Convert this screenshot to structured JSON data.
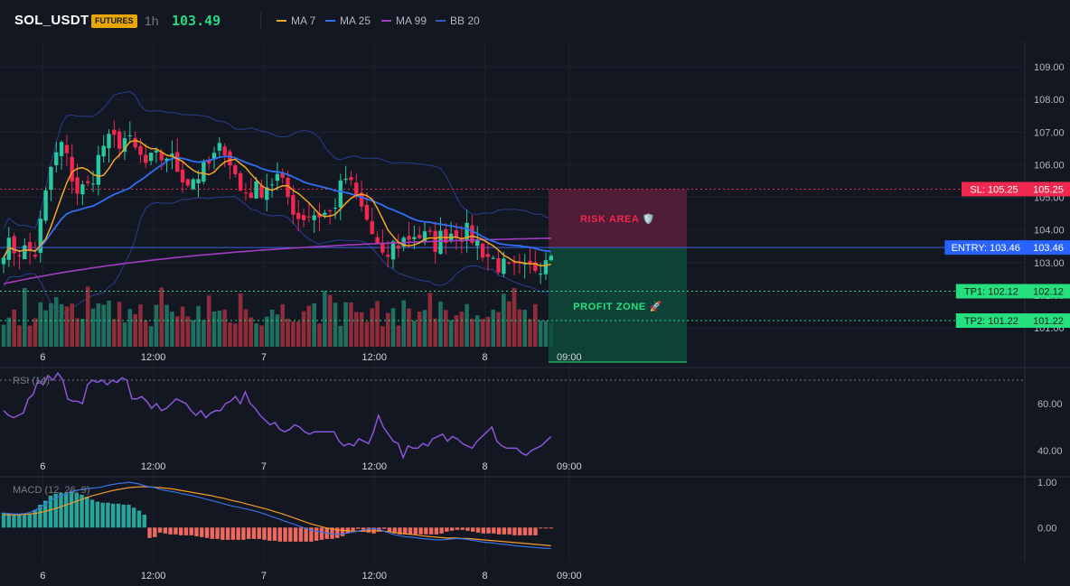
{
  "header": {
    "symbol": "SOL_USDT",
    "badge": "FUTURES",
    "timeframe": "1h",
    "last_price": "103.49",
    "indicators": [
      {
        "label": "MA 7",
        "color": "#f5a623"
      },
      {
        "label": "MA 25",
        "color": "#2f6ff2"
      },
      {
        "label": "MA 99",
        "color": "#a23cc0"
      },
      {
        "label": "BB 20",
        "color": "#2a3d8f"
      }
    ]
  },
  "colors": {
    "up": "#26c9a0",
    "down": "#f0284f",
    "vol_up": "#1e6f5f",
    "vol_down": "#8e2c3a",
    "sl": "#f0284f",
    "entry": "#2962ff",
    "tp": "#26e07f",
    "rsi": "#8a55d6",
    "macd_line": "#3a6fe0",
    "signal_line": "#f59a2a",
    "hist_pos": "#26a69a",
    "hist_neg": "#ef6a5e"
  },
  "price_axis": {
    "ticks": [
      "109.00",
      "108.00",
      "107.00",
      "106.00",
      "105.00",
      "104.00",
      "103.00",
      "102.00",
      "101.00"
    ],
    "min": 100.6,
    "max": 109.5
  },
  "time_axis": [
    {
      "label": "6",
      "idx": 4
    },
    {
      "label": "12:00",
      "idx": 25
    },
    {
      "label": "7",
      "idx": 46
    },
    {
      "label": "12:00",
      "idx": 67
    },
    {
      "label": "8",
      "idx": 88
    },
    {
      "label": "09:00",
      "idx": 104
    }
  ],
  "trade": {
    "sl_label": "SL: 105.25",
    "sl_value": "105.25",
    "entry_label": "ENTRY: 103.46",
    "entry_value": "103.46",
    "tp1_label": "TP1: 102.12",
    "tp1_value": "102.12",
    "tp2_label": "TP2: 101.22",
    "tp2_value": "101.22",
    "sl": 105.25,
    "entry": 103.46,
    "tp1": 102.12,
    "tp2": 101.22,
    "risk_label": "RISK AREA 🛡️",
    "profit_label": "PROFIT ZONE 🚀"
  },
  "rsi": {
    "title": "RSI (14)",
    "ticks": [
      "60.00",
      "40.00"
    ],
    "min": 30,
    "max": 75,
    "values": [
      57,
      55,
      54,
      55,
      56,
      62,
      64,
      70,
      68,
      72,
      70,
      73,
      70,
      62,
      61,
      61,
      60,
      68,
      70,
      69,
      70,
      68,
      70,
      69,
      71,
      70,
      62,
      62,
      63,
      61,
      58,
      60,
      57,
      58,
      60,
      62,
      61,
      60,
      57,
      55,
      57,
      54,
      56,
      57,
      57,
      60,
      61,
      63,
      60,
      65,
      60,
      58,
      55,
      53,
      51,
      52,
      49,
      48,
      49,
      51,
      50,
      48,
      47,
      48,
      48,
      48,
      48,
      48,
      44,
      42,
      43,
      42,
      45,
      44,
      43,
      48,
      55,
      50,
      47,
      44,
      43,
      37,
      42,
      41,
      41,
      43,
      42,
      45,
      46,
      47,
      44,
      46,
      45,
      43,
      42,
      41,
      44,
      46,
      48,
      50,
      44,
      42,
      41,
      41,
      41,
      39,
      38,
      40,
      41,
      42,
      44,
      46
    ],
    "overbought": 70
  },
  "macd": {
    "title": "MACD (12, 26, 9)",
    "ticks": [
      "1.00",
      "0.00"
    ],
    "min": -0.75,
    "max": 1.1,
    "macd": [
      0.32,
      0.31,
      0.3,
      0.3,
      0.31,
      0.33,
      0.38,
      0.45,
      0.52,
      0.6,
      0.65,
      0.7,
      0.74,
      0.8,
      0.82,
      0.84,
      0.86,
      0.87,
      0.88,
      0.9,
      0.93,
      0.95,
      0.97,
      0.98,
      1.0,
      0.98,
      0.96,
      0.92,
      0.9,
      0.88,
      0.84,
      0.82,
      0.8,
      0.78,
      0.75,
      0.73,
      0.71,
      0.68,
      0.65,
      0.62,
      0.59,
      0.56,
      0.53,
      0.5,
      0.47,
      0.45,
      0.42,
      0.4,
      0.37,
      0.34,
      0.3,
      0.26,
      0.22,
      0.18,
      0.14,
      0.1,
      0.06,
      0.02,
      -0.02,
      -0.06,
      -0.08,
      -0.1,
      -0.12,
      -0.14,
      -0.15,
      -0.14,
      -0.12,
      -0.1,
      -0.08,
      -0.05,
      -0.03,
      -0.02,
      -0.04,
      -0.08,
      -0.12,
      -0.16,
      -0.18,
      -0.2,
      -0.21,
      -0.22,
      -0.24,
      -0.25,
      -0.26,
      -0.27,
      -0.27,
      -0.26,
      -0.25,
      -0.24,
      -0.25,
      -0.26,
      -0.28,
      -0.3,
      -0.32,
      -0.33,
      -0.34,
      -0.36,
      -0.37,
      -0.38,
      -0.4,
      -0.41,
      -0.42,
      -0.43,
      -0.44,
      -0.45,
      -0.46,
      -0.46
    ],
    "signal": [
      0.28,
      0.28,
      0.28,
      0.28,
      0.29,
      0.3,
      0.31,
      0.33,
      0.36,
      0.39,
      0.42,
      0.46,
      0.5,
      0.54,
      0.58,
      0.62,
      0.66,
      0.7,
      0.73,
      0.76,
      0.79,
      0.82,
      0.84,
      0.86,
      0.88,
      0.89,
      0.9,
      0.9,
      0.9,
      0.89,
      0.88,
      0.87,
      0.86,
      0.84,
      0.82,
      0.8,
      0.78,
      0.76,
      0.74,
      0.72,
      0.7,
      0.67,
      0.65,
      0.62,
      0.59,
      0.57,
      0.54,
      0.51,
      0.48,
      0.45,
      0.42,
      0.39,
      0.35,
      0.32,
      0.28,
      0.24,
      0.2,
      0.16,
      0.12,
      0.08,
      0.05,
      0.02,
      -0.01,
      -0.03,
      -0.05,
      -0.06,
      -0.07,
      -0.08,
      -0.08,
      -0.08,
      -0.07,
      -0.07,
      -0.07,
      -0.08,
      -0.09,
      -0.11,
      -0.12,
      -0.14,
      -0.15,
      -0.16,
      -0.18,
      -0.19,
      -0.2,
      -0.21,
      -0.22,
      -0.23,
      -0.23,
      -0.23,
      -0.24,
      -0.24,
      -0.25,
      -0.26,
      -0.27,
      -0.28,
      -0.29,
      -0.3,
      -0.31,
      -0.32,
      -0.33,
      -0.34,
      -0.35,
      -0.36,
      -0.37,
      -0.38,
      -0.39,
      -0.4
    ]
  }
}
